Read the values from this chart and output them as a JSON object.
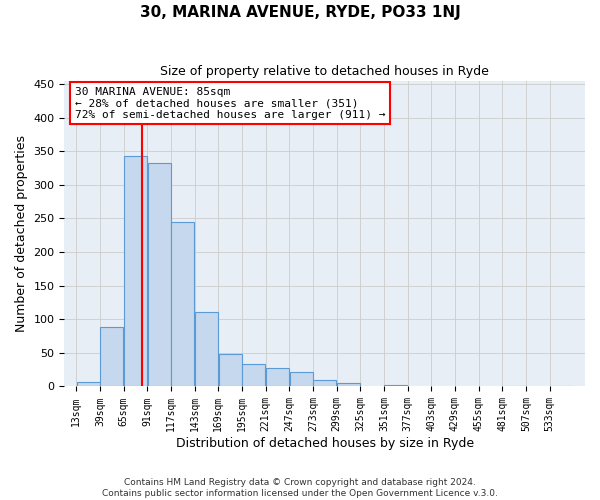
{
  "title": "30, MARINA AVENUE, RYDE, PO33 1NJ",
  "subtitle": "Size of property relative to detached houses in Ryde",
  "xlabel": "Distribution of detached houses by size in Ryde",
  "ylabel": "Number of detached properties",
  "footer_lines": [
    "Contains HM Land Registry data © Crown copyright and database right 2024.",
    "Contains public sector information licensed under the Open Government Licence v.3.0."
  ],
  "bin_labels": [
    "13sqm",
    "39sqm",
    "65sqm",
    "91sqm",
    "117sqm",
    "143sqm",
    "169sqm",
    "195sqm",
    "221sqm",
    "247sqm",
    "273sqm",
    "299sqm",
    "325sqm",
    "351sqm",
    "377sqm",
    "403sqm",
    "429sqm",
    "455sqm",
    "481sqm",
    "507sqm",
    "533sqm"
  ],
  "bin_values": [
    7,
    89,
    343,
    333,
    245,
    111,
    49,
    33,
    27,
    22,
    10,
    5,
    0,
    2,
    0,
    0,
    0,
    0,
    1,
    0,
    1
  ],
  "bin_width": 26,
  "bar_color": "#c5d8ed",
  "bar_edge_color": "#5b9bd5",
  "property_line_x": 85,
  "property_line_color": "red",
  "annotation_title": "30 MARINA AVENUE: 85sqm",
  "annotation_line1": "← 28% of detached houses are smaller (351)",
  "annotation_line2": "72% of semi-detached houses are larger (911) →",
  "annotation_box_color": "#ffffff",
  "annotation_box_edge": "red",
  "ylim": [
    0,
    455
  ],
  "yticks": [
    0,
    50,
    100,
    150,
    200,
    250,
    300,
    350,
    400,
    450
  ],
  "grid_color": "#cccccc",
  "background_color": "#ffffff",
  "plot_bg_color": "#e8eef5"
}
